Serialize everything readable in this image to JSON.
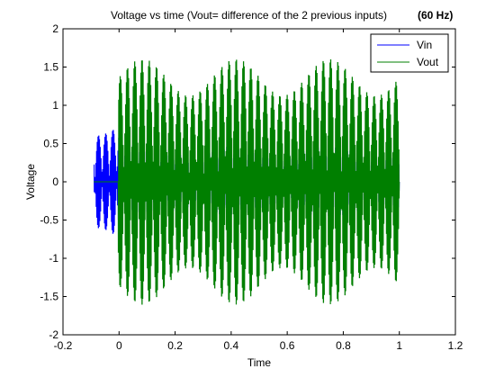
{
  "chart_data": {
    "type": "line",
    "title": "Voltage vs time (Vout= difference of the 2 previous inputs)",
    "title_suffix": "(60 Hz)",
    "xlabel": "Time",
    "ylabel": "Voltage",
    "xlim": [
      -0.2,
      1.2
    ],
    "ylim": [
      -2,
      2
    ],
    "xticks": [
      -0.2,
      0,
      0.2,
      0.4,
      0.6,
      0.8,
      1,
      1.2
    ],
    "xtick_labels": [
      "-0.2",
      "0",
      "0.2",
      "0.4",
      "0.6",
      "0.8",
      "1",
      "1.2"
    ],
    "yticks": [
      -2,
      -1.5,
      -1,
      -0.5,
      0,
      0.5,
      1,
      1.5,
      2
    ],
    "ytick_labels": [
      "-2",
      "-1.5",
      "-1",
      "-0.5",
      "0",
      "0.5",
      "1",
      "1.5",
      "2"
    ],
    "grid": false,
    "legend_position": "top-right",
    "series": [
      {
        "name": "Vin",
        "color": "#0000ff",
        "t_start": -0.09,
        "t_end": 1.0,
        "frequency_hz": 60,
        "amplitude": 0.9
      },
      {
        "name": "Vout",
        "color": "#007f00",
        "t_start": -0.09,
        "t_end": 1.0,
        "flat_until": -0.003,
        "frequency_hz": 60,
        "amplitude": 1.6
      }
    ]
  }
}
